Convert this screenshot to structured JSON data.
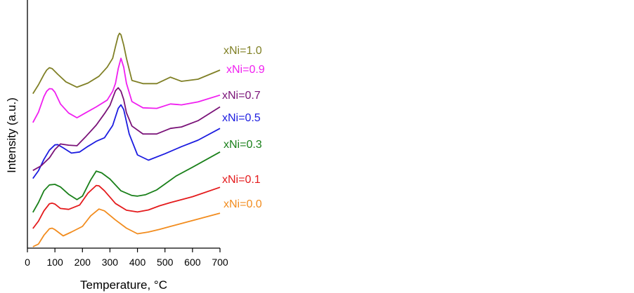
{
  "chart_data": {
    "type": "line",
    "title": "",
    "xlabel": "Temperature, °C",
    "ylabel": "Intensity (a.u.)",
    "xlim": [
      0,
      700
    ],
    "xticks": [
      0,
      100,
      200,
      300,
      400,
      500,
      600,
      700
    ],
    "yticks_shown": false,
    "grid": false,
    "legend": "inline labels at right end of each curve",
    "series": [
      {
        "name": "xNi=0.0",
        "color": "#f28c1e",
        "x": [
          20,
          40,
          60,
          80,
          90,
          100,
          130,
          160,
          200,
          230,
          260,
          280,
          320,
          360,
          400,
          440,
          480,
          520,
          600,
          700
        ],
        "y": [
          0.0,
          0.9,
          3.9,
          6.1,
          6.3,
          5.8,
          3.7,
          5.0,
          6.9,
          10.5,
          12.8,
          12.2,
          9.1,
          6.3,
          4.4,
          5.0,
          5.9,
          6.9,
          8.9,
          11.4
        ]
      },
      {
        "name": "xNi=0.1",
        "color": "#e41a1c",
        "x": [
          20,
          40,
          60,
          80,
          90,
          100,
          120,
          150,
          190,
          220,
          250,
          260,
          280,
          320,
          360,
          400,
          440,
          480,
          520,
          600,
          700
        ],
        "y": [
          6.2,
          8.7,
          12.2,
          14.6,
          14.8,
          14.5,
          13.0,
          12.7,
          14.2,
          18.2,
          20.8,
          20.7,
          19.0,
          14.7,
          12.4,
          11.8,
          12.5,
          13.9,
          15.0,
          17.0,
          20.2
        ]
      },
      {
        "name": "xNi=0.3",
        "color": "#1a801a",
        "x": [
          20,
          40,
          60,
          80,
          100,
          120,
          150,
          180,
          200,
          230,
          250,
          270,
          300,
          340,
          380,
          400,
          430,
          470,
          500,
          540,
          600,
          700
        ],
        "y": [
          11.7,
          15.0,
          19.0,
          21.0,
          21.2,
          20.3,
          17.8,
          16.0,
          17.2,
          22.7,
          25.7,
          25.1,
          23.0,
          19.0,
          17.4,
          17.2,
          17.7,
          19.3,
          21.3,
          24.0,
          27.0,
          32.2
        ]
      },
      {
        "name": "xNi=0.5",
        "color": "#1c1ce0",
        "x": [
          20,
          40,
          60,
          80,
          100,
          110,
          130,
          160,
          190,
          220,
          250,
          280,
          310,
          330,
          340,
          350,
          370,
          400,
          440,
          500,
          560,
          620,
          700
        ],
        "y": [
          23.2,
          25.8,
          29.7,
          32.8,
          34.6,
          34.7,
          33.6,
          31.8,
          32.2,
          34.1,
          35.8,
          37.0,
          41.2,
          47.0,
          48.2,
          46.6,
          38.3,
          31.2,
          29.4,
          31.6,
          34.0,
          36.2,
          40.2
        ]
      },
      {
        "name": "xNi=0.7",
        "color": "#7a1278",
        "x": [
          20,
          50,
          80,
          100,
          120,
          150,
          180,
          210,
          250,
          280,
          300,
          320,
          330,
          340,
          350,
          360,
          380,
          420,
          470,
          520,
          560,
          620,
          700
        ],
        "y": [
          25.9,
          27.5,
          30.2,
          33.0,
          34.9,
          34.5,
          34.3,
          37.2,
          41.3,
          45.2,
          48.0,
          53.0,
          54.0,
          52.8,
          50.0,
          45.5,
          41.0,
          38.3,
          38.3,
          40.2,
          40.7,
          42.8,
          47.5
        ]
      },
      {
        "name": "xNi=0.9",
        "color": "#f01ff0",
        "x": [
          20,
          40,
          60,
          70,
          80,
          90,
          100,
          120,
          150,
          180,
          210,
          250,
          290,
          310,
          320,
          330,
          340,
          350,
          360,
          380,
          420,
          470,
          520,
          560,
          620,
          700
        ],
        "y": [
          42.2,
          45.7,
          51.0,
          52.8,
          53.7,
          53.6,
          52.5,
          48.5,
          45.4,
          43.8,
          45.4,
          47.5,
          49.8,
          52.8,
          55.5,
          60.5,
          64.0,
          61.0,
          55.5,
          49.3,
          47.2,
          47.0,
          48.5,
          48.2,
          49.2,
          51.5
        ]
      },
      {
        "name": "xNi=1.0",
        "color": "#808026",
        "x": [
          20,
          40,
          60,
          70,
          80,
          90,
          110,
          140,
          180,
          220,
          260,
          290,
          310,
          320,
          330,
          335,
          340,
          350,
          360,
          380,
          420,
          470,
          520,
          560,
          620,
          700
        ],
        "y": [
          52.0,
          55.0,
          58.5,
          60.0,
          60.8,
          60.5,
          58.6,
          56.0,
          54.2,
          55.6,
          57.9,
          61.0,
          64.0,
          68.0,
          71.7,
          72.5,
          72.0,
          68.5,
          64.0,
          56.5,
          55.4,
          55.4,
          57.6,
          56.2,
          56.9,
          60.0
        ]
      }
    ]
  }
}
